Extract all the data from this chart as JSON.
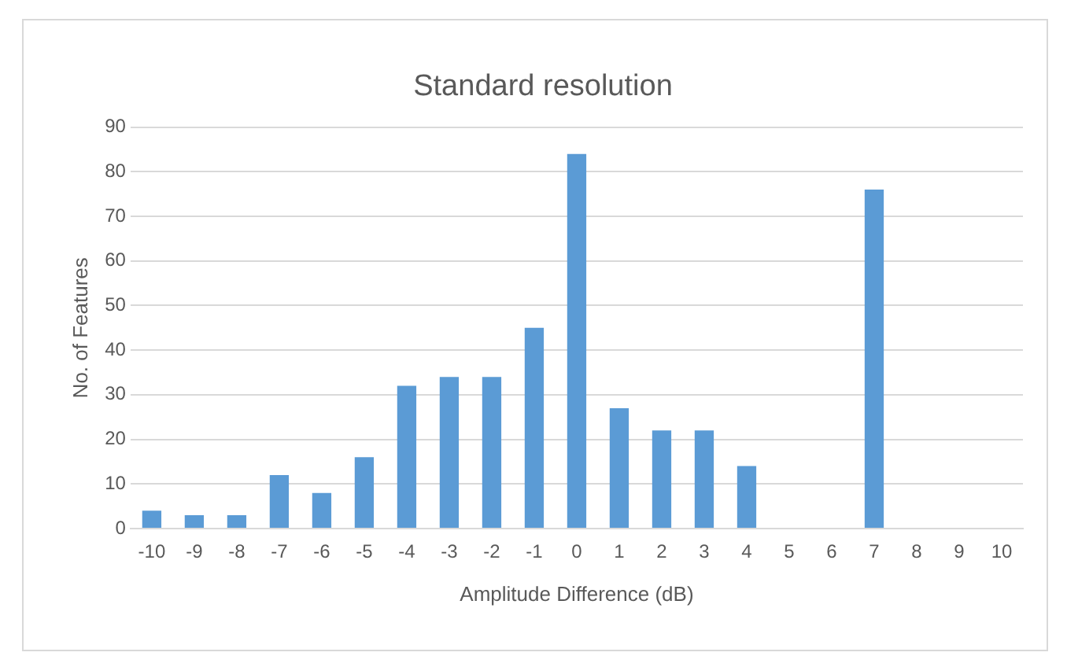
{
  "chart_data": {
    "type": "bar",
    "title": "Standard resolution",
    "xlabel": "Amplitude Difference (dB)",
    "ylabel": "No. of Features",
    "categories": [
      "-10",
      "-9",
      "-8",
      "-7",
      "-6",
      "-5",
      "-4",
      "-3",
      "-2",
      "-1",
      "0",
      "1",
      "2",
      "3",
      "4",
      "5",
      "6",
      "7",
      "8",
      "9",
      "10"
    ],
    "values": [
      4,
      3,
      3,
      12,
      8,
      16,
      32,
      34,
      34,
      45,
      84,
      27,
      22,
      22,
      14,
      0,
      0,
      76,
      0,
      0,
      0
    ],
    "color": "#5b9bd5",
    "ylim": [
      0,
      90
    ],
    "yticks": [
      0,
      10,
      20,
      30,
      40,
      50,
      60,
      70,
      80,
      90
    ],
    "grid": "y",
    "legend": false
  }
}
